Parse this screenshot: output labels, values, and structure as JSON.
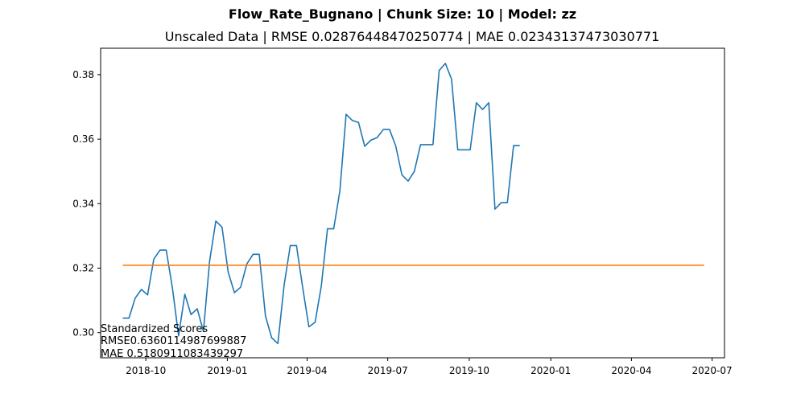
{
  "chart_data": {
    "type": "line",
    "title": "Flow_Rate_Bugnano | Chunk Size: 10 | Model: zz",
    "subtitle": "Unscaled Data | RMSE 0.02876448470250774 | MAE 0.02343137473030771",
    "xlabel": "",
    "ylabel": "",
    "x_tick_labels": [
      "2018-10",
      "2019-01",
      "2019-04",
      "2019-07",
      "2019-10",
      "2020-01",
      "2020-04",
      "2020-07"
    ],
    "x_ticks": [
      "2018-10-01",
      "2019-01-01",
      "2019-04-01",
      "2019-07-01",
      "2019-10-01",
      "2020-01-01",
      "2020-04-01",
      "2020-07-01"
    ],
    "y_tick_labels": [
      "0.30",
      "0.32",
      "0.34",
      "0.36",
      "0.38"
    ],
    "y_ticks": [
      0.3,
      0.32,
      0.34,
      0.36,
      0.38
    ],
    "xlim": [
      "2018-08-11",
      "2020-07-15"
    ],
    "ylim": [
      0.2922,
      0.3882
    ],
    "grid": false,
    "series": [
      {
        "color": "#1f77b4",
        "points": [
          [
            "2018-09-05",
            0.3045
          ],
          [
            "2018-09-12",
            0.3045
          ],
          [
            "2018-09-19",
            0.3107
          ],
          [
            "2018-09-26",
            0.3134
          ],
          [
            "2018-10-03",
            0.3117
          ],
          [
            "2018-10-10",
            0.3228
          ],
          [
            "2018-10-17",
            0.3256
          ],
          [
            "2018-10-24",
            0.3256
          ],
          [
            "2018-10-31",
            0.3139
          ],
          [
            "2018-11-07",
            0.299
          ],
          [
            "2018-11-14",
            0.3119
          ],
          [
            "2018-11-21",
            0.3056
          ],
          [
            "2018-11-28",
            0.3074
          ],
          [
            "2018-12-05",
            0.3004
          ],
          [
            "2018-12-12",
            0.3222
          ],
          [
            "2018-12-19",
            0.3346
          ],
          [
            "2018-12-26",
            0.3327
          ],
          [
            "2019-01-02",
            0.3187
          ],
          [
            "2019-01-09",
            0.3124
          ],
          [
            "2019-01-16",
            0.3141
          ],
          [
            "2019-01-23",
            0.3213
          ],
          [
            "2019-01-30",
            0.3243
          ],
          [
            "2019-02-06",
            0.3243
          ],
          [
            "2019-02-13",
            0.3052
          ],
          [
            "2019-02-20",
            0.2984
          ],
          [
            "2019-02-27",
            0.2966
          ],
          [
            "2019-03-06",
            0.3146
          ],
          [
            "2019-03-13",
            0.327
          ],
          [
            "2019-03-20",
            0.327
          ],
          [
            "2019-03-27",
            0.314
          ],
          [
            "2019-04-03",
            0.3018
          ],
          [
            "2019-04-10",
            0.3032
          ],
          [
            "2019-04-17",
            0.3144
          ],
          [
            "2019-04-24",
            0.3322
          ],
          [
            "2019-05-01",
            0.3322
          ],
          [
            "2019-05-08",
            0.344
          ],
          [
            "2019-05-15",
            0.3677
          ],
          [
            "2019-05-22",
            0.3658
          ],
          [
            "2019-05-29",
            0.3652
          ],
          [
            "2019-06-05",
            0.3578
          ],
          [
            "2019-06-12",
            0.3597
          ],
          [
            "2019-06-19",
            0.3605
          ],
          [
            "2019-06-26",
            0.363
          ],
          [
            "2019-07-03",
            0.363
          ],
          [
            "2019-07-10",
            0.3579
          ],
          [
            "2019-07-17",
            0.3489
          ],
          [
            "2019-07-24",
            0.347
          ],
          [
            "2019-07-31",
            0.35
          ],
          [
            "2019-08-07",
            0.3583
          ],
          [
            "2019-08-14",
            0.3583
          ],
          [
            "2019-08-21",
            0.3583
          ],
          [
            "2019-08-28",
            0.3813
          ],
          [
            "2019-09-04",
            0.3835
          ],
          [
            "2019-09-11",
            0.3786
          ],
          [
            "2019-09-18",
            0.3567
          ],
          [
            "2019-09-25",
            0.3567
          ],
          [
            "2019-10-02",
            0.3567
          ],
          [
            "2019-10-09",
            0.3713
          ],
          [
            "2019-10-16",
            0.3692
          ],
          [
            "2019-10-23",
            0.3713
          ],
          [
            "2019-10-30",
            0.3383
          ],
          [
            "2019-11-06",
            0.3403
          ],
          [
            "2019-11-13",
            0.3403
          ],
          [
            "2019-11-20",
            0.358
          ],
          [
            "2019-11-27",
            0.358
          ]
        ]
      },
      {
        "color": "#ff7f0e",
        "points": [
          [
            "2018-09-05",
            0.3209
          ],
          [
            "2020-06-22",
            0.3209
          ]
        ]
      }
    ],
    "annotation_lines": [
      "Standardized Scores",
      "RMSE0.6360114987699887",
      "MAE 0.5180911083439297"
    ]
  }
}
